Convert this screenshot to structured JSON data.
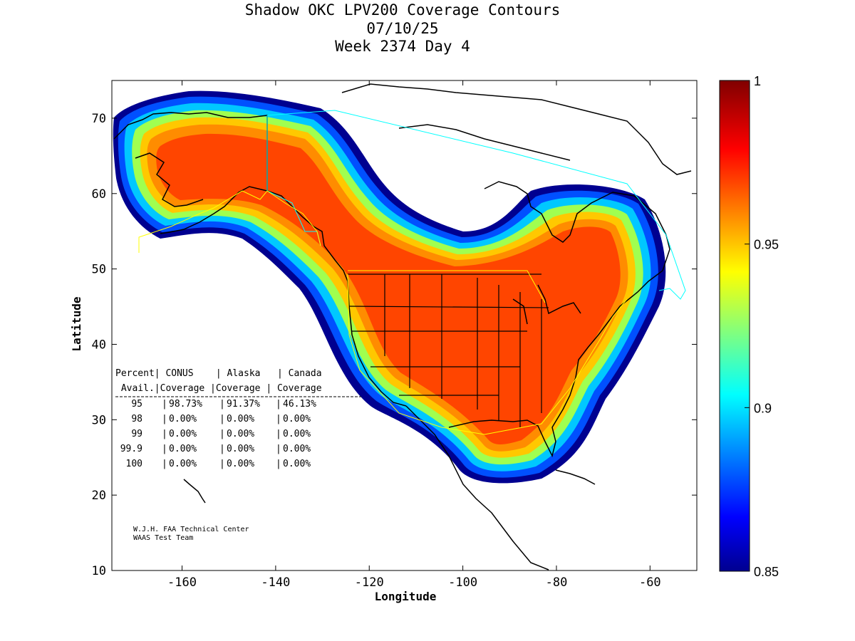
{
  "title": {
    "line1": "Shadow OKC LPV200 Coverage Contours",
    "line2": "07/10/25",
    "line3": "Week 2374 Day 4"
  },
  "axes": {
    "xlabel": "Longitude",
    "ylabel": "Latitude",
    "xticks": [
      "-160",
      "-140",
      "-120",
      "-100",
      "-80",
      "-60"
    ],
    "yticks": [
      "10",
      "20",
      "30",
      "40",
      "50",
      "60",
      "70"
    ],
    "xlim": [
      -175,
      -50
    ],
    "ylim": [
      10,
      75
    ]
  },
  "colorbar": {
    "ticks": [
      "1",
      "0.95",
      "0.9",
      "0.85"
    ],
    "range": [
      0.85,
      1.0
    ],
    "colormap": "jet"
  },
  "table": {
    "header1": "Percent| CONUS    | Alaska   | Canada",
    "header2": " Avail.|Coverage |Coverage | Coverage",
    "rows": [
      {
        "pct": "95",
        "conus": "98.73%",
        "alaska": "91.37%",
        "canada": "46.13%"
      },
      {
        "pct": "98",
        "conus": "0.00%",
        "alaska": "0.00%",
        "canada": "0.00%"
      },
      {
        "pct": "99",
        "conus": "0.00%",
        "alaska": "0.00%",
        "canada": "0.00%"
      },
      {
        "pct": "99.9",
        "conus": "0.00%",
        "alaska": "0.00%",
        "canada": "0.00%"
      },
      {
        "pct": "100",
        "conus": "0.00%",
        "alaska": "0.00%",
        "canada": "0.00%"
      }
    ]
  },
  "credit": {
    "line1": "W.J.H. FAA Technical Center",
    "line2": "WAAS Test Team"
  },
  "colors": {
    "core": "#ff4500",
    "frame": "#000000",
    "service_alaska": "#ffff00",
    "service_canada": "#00ffff"
  }
}
